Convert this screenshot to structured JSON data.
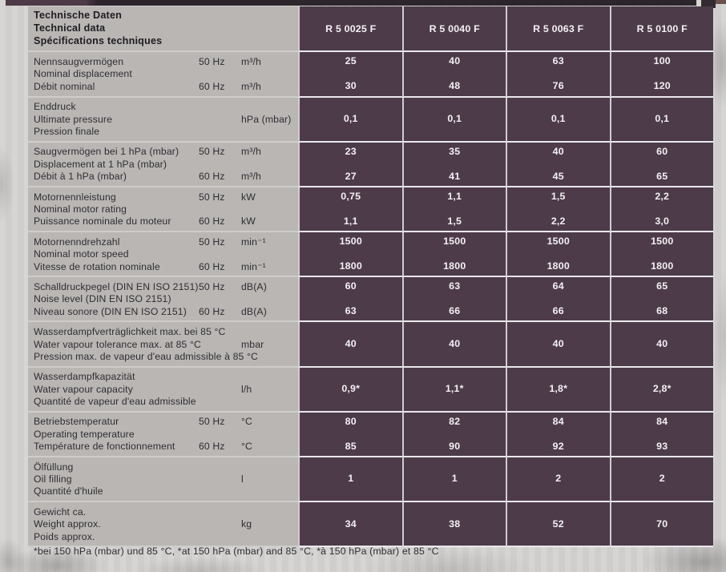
{
  "page": {
    "footnote": "*bei 150 hPa (mbar) und 85 °C, *at 150 hPa (mbar) and 85 °C, *à 150 hPa (mbar) et 85 °C"
  },
  "colors": {
    "cell_purple": "#4d3b4a",
    "label_gray": "#b9b6b3",
    "page_background": "#d4d3d1",
    "value_text": "#f3f0f3",
    "label_text": "#2e2d33",
    "top_band_dark": "#2c252b",
    "top_band_purple": "#4d3947"
  },
  "table": {
    "header": {
      "title_lines": [
        "Technische Daten",
        "Technical data",
        "Spécifications techniques"
      ],
      "columns": [
        "R 5 0025 F",
        "R 5 0040 F",
        "R 5 0063 F",
        "R 5 0100 F"
      ]
    },
    "rows": [
      {
        "de": "Nennsaugvermögen",
        "en": "Nominal displacement",
        "fr": "Débit nominal",
        "f50": "50 Hz",
        "f60": "60 Hz",
        "u50": "m³/h",
        "uMid": "",
        "u60": "m³/h",
        "v50": [
          "25",
          "40",
          "63",
          "100"
        ],
        "vMid": [
          "",
          "",
          "",
          ""
        ],
        "v60": [
          "30",
          "48",
          "76",
          "120"
        ]
      },
      {
        "de": "Enddruck",
        "en": "Ultimate pressure",
        "fr": "Pression finale",
        "f50": "",
        "f60": "",
        "u50": "",
        "uMid": "hPa (mbar)",
        "u60": "",
        "v50": [
          "",
          "",
          "",
          ""
        ],
        "vMid": [
          "0,1",
          "0,1",
          "0,1",
          "0,1"
        ],
        "v60": [
          "",
          "",
          "",
          ""
        ]
      },
      {
        "de": "Saugvermögen bei 1 hPa (mbar)",
        "en": "Displacement at 1 hPa (mbar)",
        "fr": "Débit à 1 hPa (mbar)",
        "f50": "50 Hz",
        "f60": "60 Hz",
        "u50": "m³/h",
        "uMid": "",
        "u60": "m³/h",
        "v50": [
          "23",
          "35",
          "40",
          "60"
        ],
        "vMid": [
          "",
          "",
          "",
          ""
        ],
        "v60": [
          "27",
          "41",
          "45",
          "65"
        ]
      },
      {
        "de": "Motornennleistung",
        "en": "Nominal motor rating",
        "fr": "Puissance nominale du moteur",
        "f50": "50 Hz",
        "f60": "60 Hz",
        "u50": "kW",
        "uMid": "",
        "u60": "kW",
        "v50": [
          "0,75",
          "1,1",
          "1,5",
          "2,2"
        ],
        "vMid": [
          "",
          "",
          "",
          ""
        ],
        "v60": [
          "1,1",
          "1,5",
          "2,2",
          "3,0"
        ]
      },
      {
        "de": "Motornenndrehzahl",
        "en": "Nominal motor speed",
        "fr": "Vitesse de rotation nominale",
        "f50": "50 Hz",
        "f60": "60 Hz",
        "u50": "min⁻¹",
        "uMid": "",
        "u60": "min⁻¹",
        "v50": [
          "1500",
          "1500",
          "1500",
          "1500"
        ],
        "vMid": [
          "",
          "",
          "",
          ""
        ],
        "v60": [
          "1800",
          "1800",
          "1800",
          "1800"
        ]
      },
      {
        "de": "Schalldruckpegel (DIN EN ISO 2151)",
        "en": "Noise level (DIN EN ISO 2151)",
        "fr": "Niveau sonore (DIN EN ISO 2151)",
        "f50": "50 Hz",
        "f60": "60 Hz",
        "u50": "dB(A)",
        "uMid": "",
        "u60": "dB(A)",
        "v50": [
          "60",
          "63",
          "64",
          "65"
        ],
        "vMid": [
          "",
          "",
          "",
          ""
        ],
        "v60": [
          "63",
          "66",
          "66",
          "68"
        ]
      },
      {
        "de": "Wasserdampfverträglichkeit max. bei 85 °C",
        "en": "Water vapour tolerance max. at 85 °C",
        "fr": "Pression max. de vapeur d'eau admissible à 85 °C",
        "f50": "",
        "f60": "",
        "u50": "",
        "uMid": "mbar",
        "u60": "",
        "v50": [
          "",
          "",
          "",
          ""
        ],
        "vMid": [
          "40",
          "40",
          "40",
          "40"
        ],
        "v60": [
          "",
          "",
          "",
          ""
        ]
      },
      {
        "de": "Wasserdampfkapazität",
        "en": "Water vapour capacity",
        "fr": "Quantité de vapeur d'eau admissible",
        "f50": "",
        "f60": "",
        "u50": "",
        "uMid": "l/h",
        "u60": "",
        "v50": [
          "",
          "",
          "",
          ""
        ],
        "vMid": [
          "0,9*",
          "1,1*",
          "1,8*",
          "2,8*"
        ],
        "v60": [
          "",
          "",
          "",
          ""
        ]
      },
      {
        "de": "Betriebstemperatur",
        "en": "Operating temperature",
        "fr": "Température de fonctionnement",
        "f50": "50 Hz",
        "f60": "60 Hz",
        "u50": "°C",
        "uMid": "",
        "u60": "°C",
        "v50": [
          "80",
          "82",
          "84",
          "84"
        ],
        "vMid": [
          "",
          "",
          "",
          ""
        ],
        "v60": [
          "85",
          "90",
          "92",
          "93"
        ]
      },
      {
        "de": "Ölfüllung",
        "en": "Oil filling",
        "fr": "Quantité d'huile",
        "f50": "",
        "f60": "",
        "u50": "",
        "uMid": "l",
        "u60": "",
        "v50": [
          "",
          "",
          "",
          ""
        ],
        "vMid": [
          "1",
          "1",
          "2",
          "2"
        ],
        "v60": [
          "",
          "",
          "",
          ""
        ]
      },
      {
        "de": "Gewicht ca.",
        "en": "Weight approx.",
        "fr": "Poids approx.",
        "f50": "",
        "f60": "",
        "u50": "",
        "uMid": "kg",
        "u60": "",
        "v50": [
          "",
          "",
          "",
          ""
        ],
        "vMid": [
          "34",
          "38",
          "52",
          "70"
        ],
        "v60": [
          "",
          "",
          "",
          ""
        ]
      }
    ]
  }
}
